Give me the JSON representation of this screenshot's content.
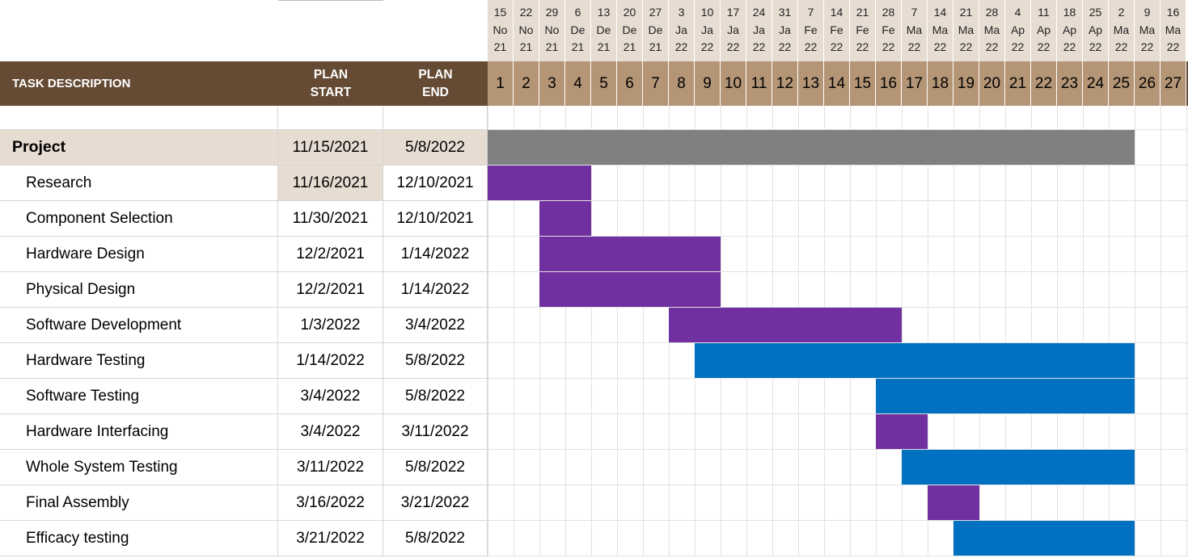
{
  "header": {
    "task_description": "TASK DESCRIPTION",
    "plan_start_line1": "PLAN",
    "plan_start_line2": "START",
    "plan_end_line1": "PLAN",
    "plan_end_line2": "END"
  },
  "weeks": [
    {
      "num": "1",
      "d": "15",
      "m": "No",
      "y": "21"
    },
    {
      "num": "2",
      "d": "22",
      "m": "No",
      "y": "21"
    },
    {
      "num": "3",
      "d": "29",
      "m": "No",
      "y": "21"
    },
    {
      "num": "4",
      "d": "6",
      "m": "De",
      "y": "21"
    },
    {
      "num": "5",
      "d": "13",
      "m": "De",
      "y": "21"
    },
    {
      "num": "6",
      "d": "20",
      "m": "De",
      "y": "21"
    },
    {
      "num": "7",
      "d": "27",
      "m": "De",
      "y": "21"
    },
    {
      "num": "8",
      "d": "3",
      "m": "Ja",
      "y": "22"
    },
    {
      "num": "9",
      "d": "10",
      "m": "Ja",
      "y": "22"
    },
    {
      "num": "10",
      "d": "17",
      "m": "Ja",
      "y": "22"
    },
    {
      "num": "11",
      "d": "24",
      "m": "Ja",
      "y": "22"
    },
    {
      "num": "12",
      "d": "31",
      "m": "Ja",
      "y": "22"
    },
    {
      "num": "13",
      "d": "7",
      "m": "Fe",
      "y": "22"
    },
    {
      "num": "14",
      "d": "14",
      "m": "Fe",
      "y": "22"
    },
    {
      "num": "15",
      "d": "21",
      "m": "Fe",
      "y": "22"
    },
    {
      "num": "16",
      "d": "28",
      "m": "Fe",
      "y": "22"
    },
    {
      "num": "17",
      "d": "7",
      "m": "Ma",
      "y": "22"
    },
    {
      "num": "18",
      "d": "14",
      "m": "Ma",
      "y": "22"
    },
    {
      "num": "19",
      "d": "21",
      "m": "Ma",
      "y": "22"
    },
    {
      "num": "20",
      "d": "28",
      "m": "Ma",
      "y": "22"
    },
    {
      "num": "21",
      "d": "4",
      "m": "Ap",
      "y": "22"
    },
    {
      "num": "22",
      "d": "11",
      "m": "Ap",
      "y": "22"
    },
    {
      "num": "23",
      "d": "18",
      "m": "Ap",
      "y": "22"
    },
    {
      "num": "24",
      "d": "25",
      "m": "Ap",
      "y": "22"
    },
    {
      "num": "25",
      "d": "2",
      "m": "Ma",
      "y": "22"
    },
    {
      "num": "26",
      "d": "9",
      "m": "Ma",
      "y": "22"
    },
    {
      "num": "27",
      "d": "16",
      "m": "Ma",
      "y": "22"
    }
  ],
  "tasks": [
    {
      "name": "Project",
      "start": "11/15/2021",
      "end": "5/8/2022",
      "bar_from_week": 1,
      "bar_to_week": 25,
      "color": "#808080",
      "summary": true
    },
    {
      "name": "Research",
      "start": "11/16/2021",
      "end": "12/10/2021",
      "bar_from_week": 1,
      "bar_to_week": 4,
      "color": "#7030a0",
      "highlight_start": true
    },
    {
      "name": "Component Selection",
      "start": "11/30/2021",
      "end": "12/10/2021",
      "bar_from_week": 3,
      "bar_to_week": 4,
      "color": "#7030a0"
    },
    {
      "name": "Hardware Design",
      "start": "12/2/2021",
      "end": "1/14/2022",
      "bar_from_week": 3,
      "bar_to_week": 9,
      "color": "#7030a0"
    },
    {
      "name": "Physical Design",
      "start": "12/2/2021",
      "end": "1/14/2022",
      "bar_from_week": 3,
      "bar_to_week": 9,
      "color": "#7030a0"
    },
    {
      "name": "Software Development",
      "start": "1/3/2022",
      "end": "3/4/2022",
      "bar_from_week": 8,
      "bar_to_week": 16,
      "color": "#7030a0"
    },
    {
      "name": "Hardware Testing",
      "start": "1/14/2022",
      "end": "5/8/2022",
      "bar_from_week": 9,
      "bar_to_week": 25,
      "color": "#0070c0"
    },
    {
      "name": "Software Testing",
      "start": "3/4/2022",
      "end": "5/8/2022",
      "bar_from_week": 16,
      "bar_to_week": 25,
      "color": "#0070c0"
    },
    {
      "name": "Hardware Interfacing",
      "start": "3/4/2022",
      "end": "3/11/2022",
      "bar_from_week": 16,
      "bar_to_week": 17,
      "color": "#7030a0"
    },
    {
      "name": "Whole System Testing",
      "start": "3/11/2022",
      "end": "5/8/2022",
      "bar_from_week": 17,
      "bar_to_week": 25,
      "color": "#0070c0"
    },
    {
      "name": "Final Assembly",
      "start": "3/16/2022",
      "end": "3/21/2022",
      "bar_from_week": 18,
      "bar_to_week": 19,
      "color": "#7030a0"
    },
    {
      "name": "Efficacy testing",
      "start": "3/21/2022",
      "end": "5/8/2022",
      "bar_from_week": 19,
      "bar_to_week": 25,
      "color": "#0070c0"
    }
  ],
  "colors": {
    "header_dark": "#654b34",
    "header_week": "#b49576",
    "header_date": "#e7dcd2",
    "summary_row": "#e7dcd2",
    "purple": "#7030a0",
    "blue": "#0070c0",
    "gray": "#808080"
  }
}
